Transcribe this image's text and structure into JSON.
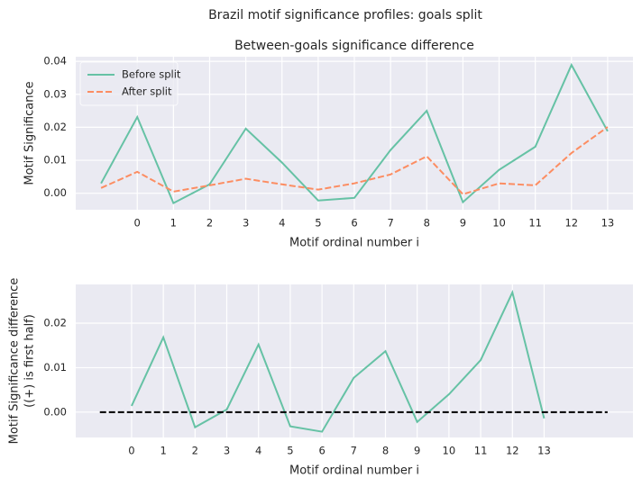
{
  "suptitle": "Brazil motif significance profiles: goals split",
  "chart_data": [
    {
      "type": "line",
      "title": "Between-goals significance difference",
      "xlabel": "Motif ordinal number i",
      "ylabel": [
        "Motif Significance"
      ],
      "xlim": [
        -1.7,
        13.7
      ],
      "xticks": [
        0,
        1,
        2,
        3,
        4,
        5,
        6,
        7,
        8,
        9,
        10,
        11,
        12,
        13
      ],
      "ylim": [
        -0.005,
        0.0414
      ],
      "yticks": [
        {
          "value": 0,
          "label": "0.00"
        },
        {
          "value": 0.01,
          "label": "0.01"
        },
        {
          "value": 0.02,
          "label": "0.02"
        },
        {
          "value": 0.03,
          "label": "0.03"
        },
        {
          "value": 0.04,
          "label": "0.04"
        }
      ],
      "grid": true,
      "legend": "upper left",
      "series": [
        {
          "name": "Before split",
          "color": "#66c2a5",
          "dash": "solid",
          "x": [
            -1,
            0,
            1,
            2,
            3,
            4,
            5,
            6,
            7,
            8,
            9,
            10,
            11,
            12,
            13
          ],
          "values": [
            0.003,
            0.0231,
            -0.003,
            0.0027,
            0.0196,
            0.0093,
            -0.0022,
            -0.0014,
            0.0131,
            0.025,
            -0.0027,
            0.0071,
            0.0141,
            0.0389,
            0.0188
          ]
        },
        {
          "name": "After split",
          "color": "#fc8d62",
          "dash": "dashed",
          "x": [
            -1,
            0,
            1,
            2,
            3,
            4,
            5,
            6,
            7,
            8,
            9,
            10,
            11,
            12,
            13
          ],
          "values": [
            0.0016,
            0.0065,
            0.0005,
            0.0024,
            0.0044,
            0.0027,
            0.0011,
            0.003,
            0.0057,
            0.0112,
            -0.0003,
            0.003,
            0.0024,
            0.0122,
            0.0201
          ]
        }
      ]
    },
    {
      "type": "line",
      "xlabel": "Motif ordinal number i",
      "ylabel": [
        "Motif Significance difference",
        "((+) is first half)"
      ],
      "xlim": [
        -1.76,
        15.8
      ],
      "xticks": [
        0,
        1,
        2,
        3,
        4,
        5,
        6,
        7,
        8,
        9,
        10,
        11,
        12,
        13
      ],
      "ylim": [
        -0.0057,
        0.0287
      ],
      "yticks": [
        {
          "value": 0,
          "label": "0.00"
        },
        {
          "value": 0.01,
          "label": "0.01"
        },
        {
          "value": 0.02,
          "label": "0.02"
        }
      ],
      "grid": true,
      "series": [
        {
          "color": "#66c2a5",
          "dash": "solid",
          "x": [
            0,
            1,
            2,
            3,
            4,
            5,
            6,
            7,
            8,
            9,
            10,
            11,
            12,
            13
          ],
          "values": [
            0.0014,
            0.0168,
            -0.0034,
            0.0006,
            0.0152,
            -0.0032,
            -0.0044,
            0.0077,
            0.0137,
            -0.0022,
            0.004,
            0.0117,
            0.0269,
            -0.0014
          ]
        },
        {
          "color": "#000000",
          "dash": "dashed",
          "x": [
            -1,
            15
          ],
          "values": [
            0,
            0
          ]
        }
      ]
    }
  ]
}
